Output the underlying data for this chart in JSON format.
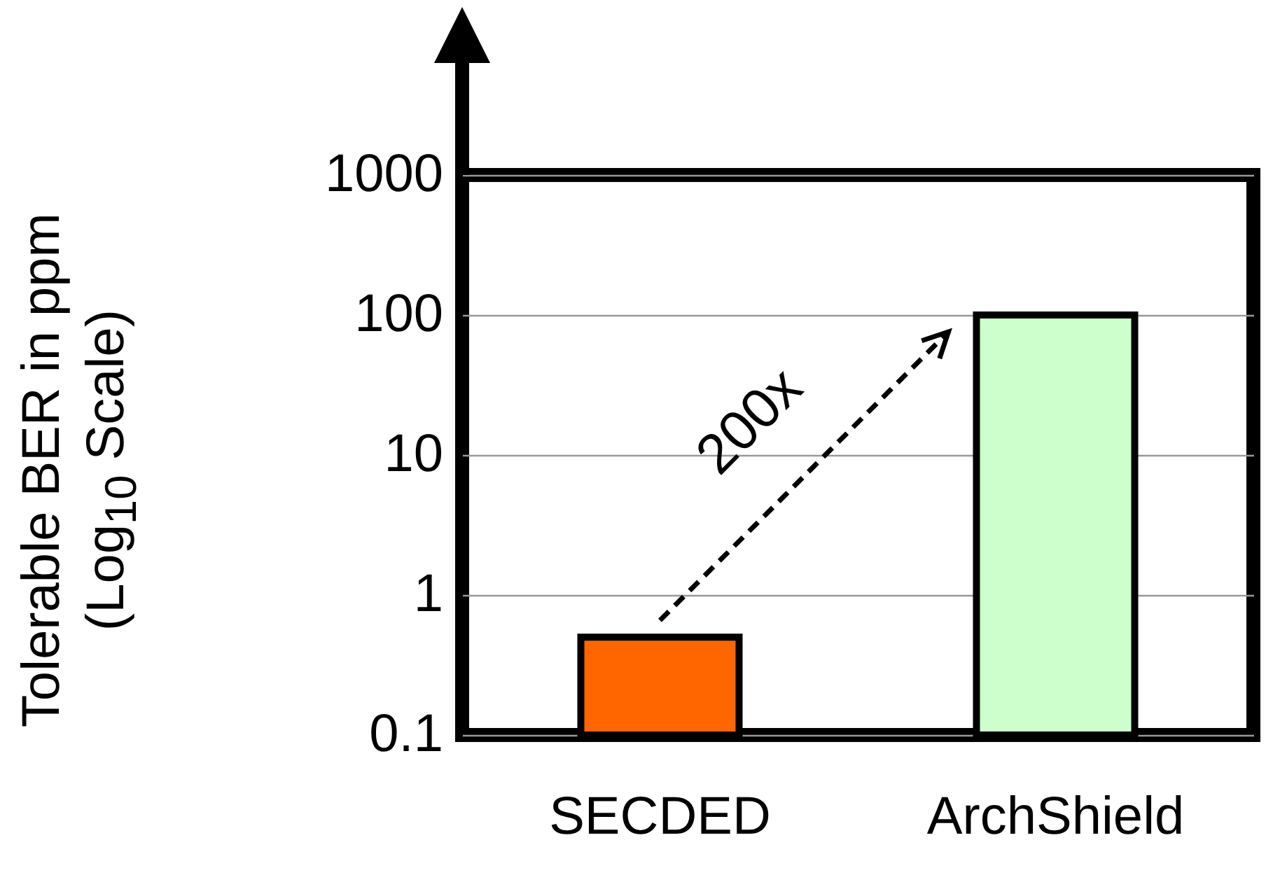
{
  "chart_data": {
    "type": "bar",
    "ylabel": "Tolerable BER in ppm (Log$_{10}$ Scale)",
    "categories": [
      "SECDED",
      "ArchShield"
    ],
    "values": [
      0.5,
      100
    ],
    "colors": [
      "#ff6600",
      "#ccffcc"
    ],
    "log": true,
    "grid": "y",
    "ylim": [
      0.1,
      1000
    ],
    "yticks": [
      0.1,
      1,
      10,
      100,
      1000
    ],
    "annotations": [
      "200x"
    ]
  }
}
